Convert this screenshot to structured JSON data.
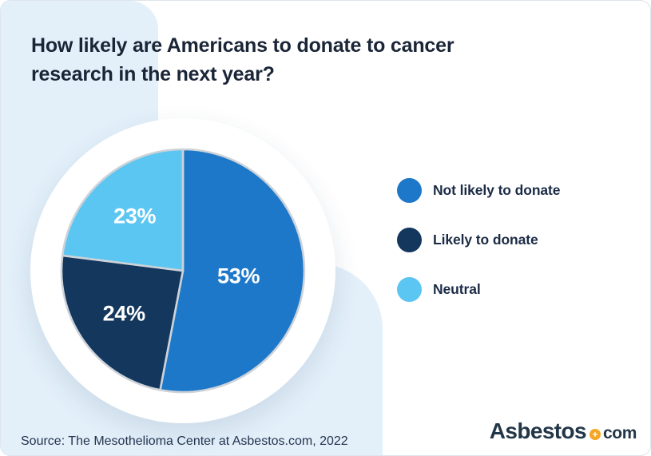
{
  "header": {
    "title_line1": "How likely are Americans to donate to cancer",
    "title_line2": "research in the next year?"
  },
  "chart_data": {
    "type": "pie",
    "title": "How likely are Americans to donate to cancer research in the next year?",
    "categories": [
      "Not likely to donate",
      "Likely to donate",
      "Neutral"
    ],
    "values": [
      53,
      24,
      23
    ],
    "unit": "percent",
    "start_angle_deg": 0,
    "direction": "clockwise",
    "legend_position": "right",
    "data_labels": "inside",
    "slices": [
      {
        "label": "Not likely to donate",
        "value": 53,
        "display": "53%",
        "color": "#1e78c9"
      },
      {
        "label": "Likely to donate",
        "value": 24,
        "display": "24%",
        "color": "#14375e"
      },
      {
        "label": "Neutral",
        "value": 23,
        "display": "23%",
        "color": "#5cc6f2"
      }
    ]
  },
  "legend": {
    "items": [
      {
        "label": "Not likely to donate",
        "color": "#1e78c9"
      },
      {
        "label": "Likely to donate",
        "color": "#14375e"
      },
      {
        "label": "Neutral",
        "color": "#5cc6f2"
      }
    ]
  },
  "footer": {
    "source_text": "Source: The Mesothelioma Center at Asbestos.com, 2022"
  },
  "brand": {
    "name": "Asbestos",
    "suffix": "com",
    "badge_symbol": "+",
    "badge_color": "#f6a623",
    "text_color": "#223647"
  },
  "colors": {
    "card_background": "#ffffff",
    "decor_background": "#e3f0fa",
    "title_text": "#1a2537",
    "slice_divider": "#cdd3d9"
  }
}
